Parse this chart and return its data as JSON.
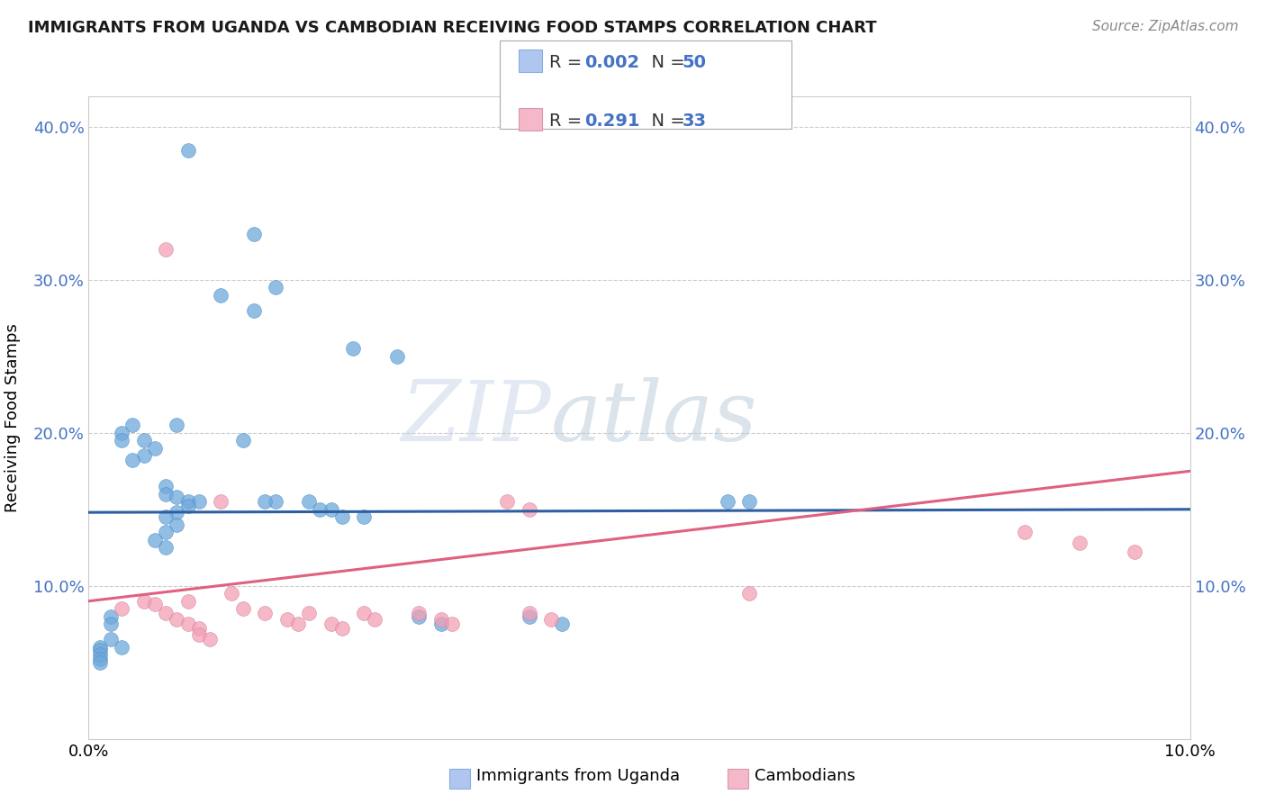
{
  "title": "IMMIGRANTS FROM UGANDA VS CAMBODIAN RECEIVING FOOD STAMPS CORRELATION CHART",
  "source": "Source: ZipAtlas.com",
  "ylabel": "Receiving Food Stamps",
  "watermark": "ZIPatlas",
  "xlim": [
    0.0,
    0.1
  ],
  "ylim": [
    0.0,
    0.42
  ],
  "ytick_vals": [
    0.1,
    0.2,
    0.3,
    0.4
  ],
  "ytick_labels": [
    "10.0%",
    "20.0%",
    "30.0%",
    "40.0%"
  ],
  "xtick_vals": [
    0.0,
    0.1
  ],
  "xtick_labels": [
    "0.0%",
    "10.0%"
  ],
  "legend_color1": "#aec6f0",
  "legend_color2": "#f4b8c8",
  "blue_color": "#6fa8dc",
  "pink_color": "#f4a0b4",
  "trend_blue": "#2e5fa3",
  "trend_pink": "#e06080",
  "title_color": "#1a1a1a",
  "source_color": "#888888",
  "grid_color": "#cccccc",
  "uganda_x": [
    0.009,
    0.015,
    0.017,
    0.012,
    0.015,
    0.024,
    0.028,
    0.008,
    0.014,
    0.007,
    0.007,
    0.008,
    0.009,
    0.01,
    0.009,
    0.008,
    0.007,
    0.008,
    0.007,
    0.006,
    0.007,
    0.004,
    0.005,
    0.006,
    0.005,
    0.004,
    0.003,
    0.003,
    0.002,
    0.002,
    0.02,
    0.022,
    0.025,
    0.023,
    0.03,
    0.032,
    0.04,
    0.043,
    0.06,
    0.002,
    0.003,
    0.058,
    0.017,
    0.016,
    0.021,
    0.001,
    0.001,
    0.001,
    0.001,
    0.001
  ],
  "uganda_y": [
    0.385,
    0.33,
    0.295,
    0.29,
    0.28,
    0.255,
    0.25,
    0.205,
    0.195,
    0.165,
    0.16,
    0.158,
    0.155,
    0.155,
    0.152,
    0.148,
    0.145,
    0.14,
    0.135,
    0.13,
    0.125,
    0.205,
    0.195,
    0.19,
    0.185,
    0.182,
    0.2,
    0.195,
    0.08,
    0.075,
    0.155,
    0.15,
    0.145,
    0.145,
    0.08,
    0.075,
    0.08,
    0.075,
    0.155,
    0.065,
    0.06,
    0.155,
    0.155,
    0.155,
    0.15,
    0.06,
    0.058,
    0.055,
    0.052,
    0.05
  ],
  "cambodian_x": [
    0.003,
    0.005,
    0.006,
    0.007,
    0.008,
    0.009,
    0.01,
    0.01,
    0.011,
    0.012,
    0.013,
    0.014,
    0.016,
    0.018,
    0.019,
    0.02,
    0.022,
    0.023,
    0.025,
    0.026,
    0.03,
    0.032,
    0.033,
    0.04,
    0.042,
    0.038,
    0.04,
    0.06,
    0.085,
    0.09,
    0.095,
    0.007,
    0.009
  ],
  "cambodian_y": [
    0.085,
    0.09,
    0.088,
    0.082,
    0.078,
    0.075,
    0.072,
    0.068,
    0.065,
    0.155,
    0.095,
    0.085,
    0.082,
    0.078,
    0.075,
    0.082,
    0.075,
    0.072,
    0.082,
    0.078,
    0.082,
    0.078,
    0.075,
    0.082,
    0.078,
    0.155,
    0.15,
    0.095,
    0.135,
    0.128,
    0.122,
    0.32,
    0.09
  ]
}
